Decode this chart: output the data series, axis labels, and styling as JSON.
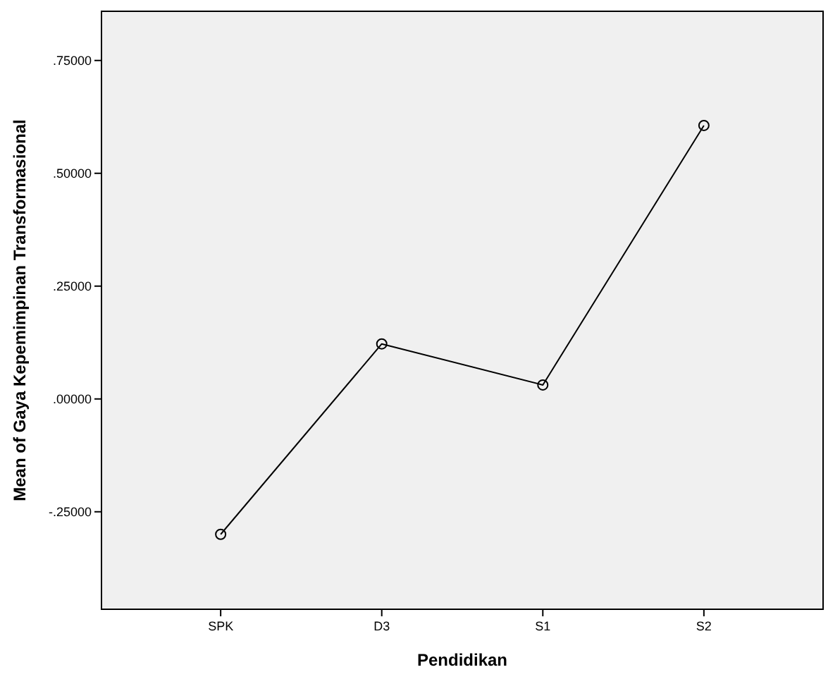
{
  "chart_data": {
    "type": "line",
    "xlabel": "Pendidikan",
    "ylabel": "Mean of Gaya Kepemimpinan Transformasional",
    "categories": [
      "SPK",
      "D3",
      "S1",
      "S2"
    ],
    "series": [
      {
        "color": "#000000",
        "values": [
          -0.3,
          0.122,
          0.031,
          0.606
        ]
      }
    ],
    "ylim": [
      -0.466,
      0.859
    ],
    "yticks": [
      {
        "value": -0.25,
        "label": "-.25000"
      },
      {
        "value": 0,
        "label": ".00000"
      },
      {
        "value": 0.25,
        "label": ".25000"
      },
      {
        "value": 0.5,
        "label": ".50000"
      },
      {
        "value": 0.75,
        "label": ".75000"
      }
    ],
    "marker": "circle",
    "line_style": "solid",
    "grid": false
  }
}
